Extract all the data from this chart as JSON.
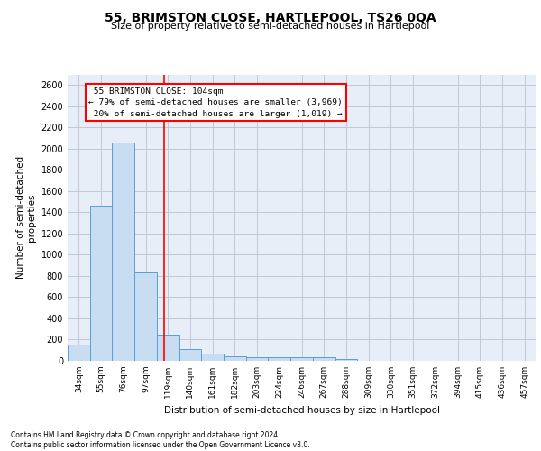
{
  "title": "55, BRIMSTON CLOSE, HARTLEPOOL, TS26 0QA",
  "subtitle": "Size of property relative to semi-detached houses in Hartlepool",
  "xlabel": "Distribution of semi-detached houses by size in Hartlepool",
  "ylabel": "Number of semi-detached propertie⁠s",
  "bar_labels": [
    "34sqm",
    "55sqm",
    "76sqm",
    "97sqm",
    "119sqm",
    "140sqm",
    "161sqm",
    "182sqm",
    "203sqm",
    "224sqm",
    "246sqm",
    "267sqm",
    "288sqm",
    "309sqm",
    "330sqm",
    "351sqm",
    "372sqm",
    "394sqm",
    "415sqm",
    "436sqm",
    "457sqm"
  ],
  "bar_values": [
    150,
    1460,
    2060,
    830,
    250,
    110,
    65,
    45,
    35,
    30,
    35,
    30,
    20,
    0,
    0,
    0,
    0,
    0,
    0,
    0,
    0
  ],
  "bar_color": "#c9ddf2",
  "bar_edge_color": "#5a9fd4",
  "property_label": "55 BRIMSTON CLOSE: 104sqm",
  "pct_smaller": 79,
  "n_smaller": 3969,
  "pct_larger": 20,
  "n_larger": 1019,
  "ylim": [
    0,
    2700
  ],
  "yticks": [
    0,
    200,
    400,
    600,
    800,
    1000,
    1200,
    1400,
    1600,
    1800,
    2000,
    2200,
    2400,
    2600
  ],
  "grid_color": "#c0c8d8",
  "bg_color": "#e8eef8",
  "footer_line1": "Contains HM Land Registry data © Crown copyright and database right 2024.",
  "footer_line2": "Contains public sector information licensed under the Open Government Licence v3.0."
}
